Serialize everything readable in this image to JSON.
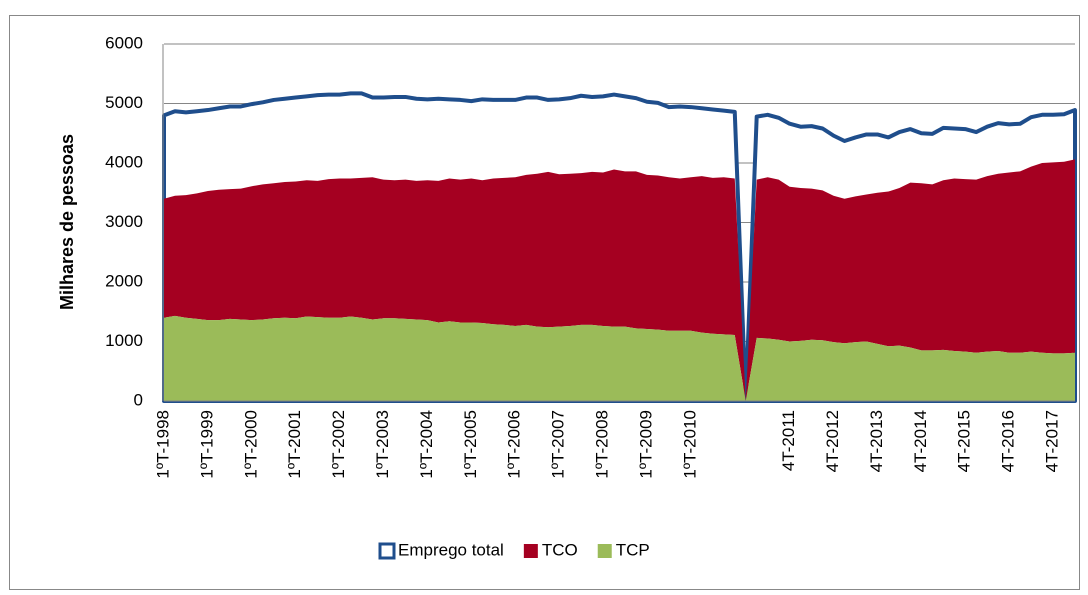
{
  "chart_data": {
    "type": "area",
    "y_label": "Milhares de pessoas",
    "categories": [
      "1ºT-1998",
      null,
      null,
      null,
      "1ºT-1999",
      null,
      null,
      null,
      "1ºT-2000",
      null,
      null,
      null,
      "1ºT-2001",
      null,
      null,
      null,
      "1ºT-2002",
      null,
      null,
      null,
      "1ºT-2003",
      null,
      null,
      null,
      "1ºT-2004",
      null,
      null,
      null,
      "1ºT-2005",
      null,
      null,
      null,
      "1ºT-2006",
      null,
      null,
      null,
      "1ºT-2007",
      null,
      null,
      null,
      "1ºT-2008",
      null,
      null,
      null,
      "1ºT-2009",
      null,
      null,
      null,
      "1ºT-2010",
      null,
      null,
      null,
      null,
      null,
      null,
      null,
      null,
      "4T-2011",
      null,
      null,
      null,
      "4T-2012",
      null,
      null,
      null,
      "4T-2013",
      null,
      null,
      null,
      "4T-2014",
      null,
      null,
      null,
      "4T-2015",
      null,
      null,
      null,
      "4T-2016",
      null,
      null,
      null,
      "4T-2017",
      null,
      null
    ],
    "series": [
      {
        "name": "Emprego total",
        "color": "#1f4e8c",
        "fill": "#ffffff",
        "stack": false,
        "values": [
          4800,
          4870,
          4850,
          4870,
          4890,
          4920,
          4950,
          4950,
          4990,
          5020,
          5060,
          5080,
          5100,
          5120,
          5140,
          5150,
          5150,
          5170,
          5170,
          5100,
          5100,
          5110,
          5110,
          5080,
          5070,
          5080,
          5070,
          5060,
          5040,
          5070,
          5060,
          5060,
          5060,
          5100,
          5100,
          5060,
          5070,
          5090,
          5130,
          5110,
          5120,
          5150,
          5120,
          5090,
          5030,
          5010,
          4940,
          4950,
          4940,
          4920,
          4900,
          4880,
          4860,
          0,
          4780,
          4810,
          4760,
          4660,
          4610,
          4620,
          4580,
          4460,
          4370,
          4430,
          4480,
          4480,
          4430,
          4520,
          4570,
          4500,
          4490,
          4590,
          4580,
          4570,
          4520,
          4610,
          4670,
          4650,
          4660,
          4770,
          4810,
          4810,
          4820,
          4890
        ]
      },
      {
        "name": "TCO",
        "color": "#a50021",
        "fill": "#a50021",
        "stack": true,
        "values": [
          2000,
          2020,
          2060,
          2110,
          2170,
          2190,
          2180,
          2200,
          2250,
          2270,
          2270,
          2280,
          2300,
          2290,
          2290,
          2330,
          2340,
          2320,
          2350,
          2390,
          2330,
          2320,
          2340,
          2330,
          2350,
          2380,
          2400,
          2400,
          2420,
          2400,
          2450,
          2470,
          2500,
          2520,
          2570,
          2610,
          2560,
          2560,
          2550,
          2570,
          2580,
          2640,
          2610,
          2640,
          2590,
          2590,
          2580,
          2560,
          2580,
          2630,
          2620,
          2640,
          2630,
          0,
          2660,
          2710,
          2690,
          2600,
          2570,
          2540,
          2520,
          2460,
          2430,
          2450,
          2470,
          2540,
          2600,
          2650,
          2770,
          2810,
          2790,
          2850,
          2900,
          2900,
          2910,
          2950,
          2980,
          3030,
          3050,
          3110,
          3190,
          3210,
          3220,
          3250
        ]
      },
      {
        "name": "TCP",
        "color": "#9bbb59",
        "fill": "#9bbb59",
        "stack": true,
        "values": [
          1400,
          1430,
          1400,
          1380,
          1360,
          1360,
          1380,
          1370,
          1360,
          1370,
          1390,
          1400,
          1390,
          1420,
          1410,
          1400,
          1400,
          1420,
          1400,
          1370,
          1390,
          1390,
          1380,
          1370,
          1360,
          1320,
          1340,
          1320,
          1320,
          1310,
          1290,
          1280,
          1260,
          1280,
          1250,
          1240,
          1250,
          1260,
          1280,
          1280,
          1260,
          1250,
          1250,
          1220,
          1210,
          1200,
          1180,
          1180,
          1180,
          1150,
          1130,
          1120,
          1110,
          0,
          1060,
          1050,
          1030,
          1000,
          1010,
          1030,
          1020,
          990,
          970,
          990,
          1000,
          960,
          920,
          930,
          900,
          850,
          850,
          860,
          840,
          830,
          810,
          830,
          840,
          810,
          810,
          830,
          810,
          800,
          800,
          810
        ]
      }
    ],
    "ylim": [
      0,
      6000
    ],
    "yticks": [
      0,
      1000,
      2000,
      3000,
      4000,
      5000,
      6000
    ],
    "grid": true,
    "legend": "bottom"
  }
}
